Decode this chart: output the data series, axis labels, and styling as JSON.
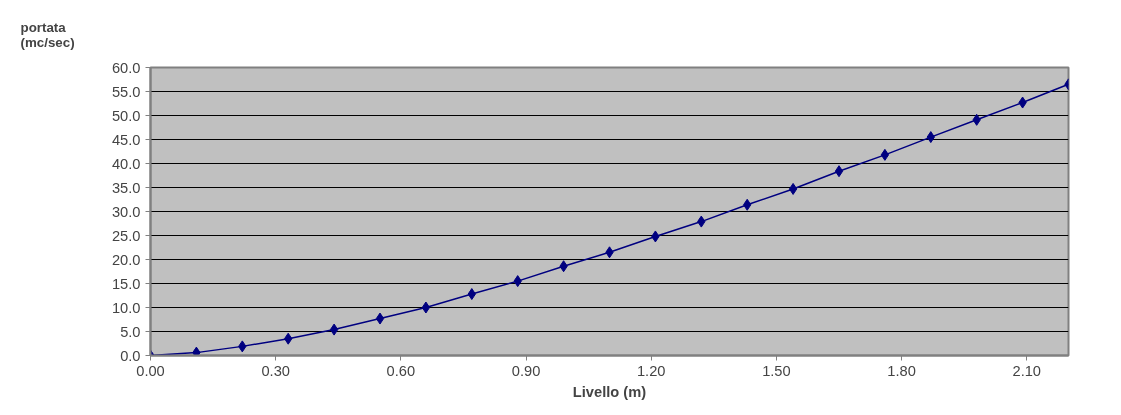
{
  "chart_data": {
    "type": "line",
    "xlabel": "Livello (m)",
    "ylabel": "portata\n(mc/sec)",
    "x": [
      0.0,
      0.11,
      0.22,
      0.33,
      0.44,
      0.55,
      0.66,
      0.77,
      0.88,
      0.99,
      1.1,
      1.21,
      1.32,
      1.43,
      1.54,
      1.65,
      1.76,
      1.87,
      1.98,
      2.09,
      2.2
    ],
    "series": [
      {
        "color": "#000080",
        "values": [
          0.0,
          0.6,
          1.9,
          3.5,
          5.4,
          7.7,
          10.0,
          12.8,
          15.5,
          18.6,
          21.5,
          24.8,
          27.9,
          31.4,
          34.7,
          38.4,
          41.8,
          45.5,
          49.1,
          52.7,
          56.5
        ]
      }
    ],
    "xlim": [
      0,
      2.2
    ],
    "ylim": [
      0,
      60
    ],
    "xticks": [
      {
        "value": 0,
        "label": "0.00"
      },
      {
        "value": 0.3,
        "label": "0.30"
      },
      {
        "value": 0.6,
        "label": "0.60"
      },
      {
        "value": 0.9,
        "label": "0.90"
      },
      {
        "value": 1.2,
        "label": "1.20"
      },
      {
        "value": 1.5,
        "label": "1.50"
      },
      {
        "value": 1.8,
        "label": "1.80"
      },
      {
        "value": 2.1,
        "label": "2.10"
      }
    ],
    "yticks": [
      {
        "value": 0,
        "label": "0.0"
      },
      {
        "value": 5,
        "label": "5.0"
      },
      {
        "value": 10,
        "label": "10.0"
      },
      {
        "value": 15,
        "label": "15.0"
      },
      {
        "value": 20,
        "label": "20.0"
      },
      {
        "value": 25,
        "label": "25.0"
      },
      {
        "value": 30,
        "label": "30.0"
      },
      {
        "value": 35,
        "label": "35.0"
      },
      {
        "value": 40,
        "label": "40.0"
      },
      {
        "value": 45,
        "label": "45.0"
      },
      {
        "value": 50,
        "label": "50.0"
      },
      {
        "value": 55,
        "label": "55.0"
      },
      {
        "value": 60,
        "label": "60.0"
      }
    ],
    "grid": "y",
    "marker": "diamond",
    "line_style": "solid"
  }
}
